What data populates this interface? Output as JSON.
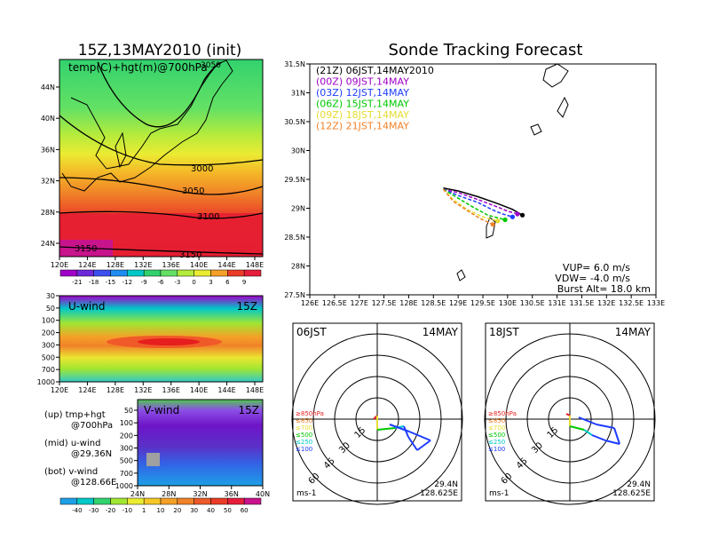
{
  "left_title": "15Z,13MAY2010 (init)",
  "right_title": "Sonde Tracking Forecast",
  "map700": {
    "title": "temp(C)+hgt(m)@700hPa",
    "y_ticks": [
      "44N",
      "40N",
      "36N",
      "32N",
      "28N",
      "24N"
    ],
    "x_ticks": [
      "120E",
      "124E",
      "128E",
      "132E",
      "136E",
      "140E",
      "144E",
      "148E"
    ],
    "contours": [
      "3000",
      "3050",
      "3100",
      "3150",
      "3150",
      "3050"
    ],
    "colorbar": [
      "-21",
      "-18",
      "-15",
      "-12",
      "-9",
      "-6",
      "-3",
      "0",
      "3",
      "6",
      "9"
    ]
  },
  "uwind": {
    "title": "U-wind",
    "time": "15Z",
    "y_ticks": [
      "30",
      "50",
      "100",
      "200",
      "300",
      "500",
      "700",
      "1000"
    ],
    "x_ticks": [
      "120E",
      "124E",
      "128E",
      "132E",
      "136E",
      "140E",
      "144E",
      "148E"
    ]
  },
  "vwind": {
    "title": "V-wind",
    "time": "15Z",
    "y_ticks": [
      "50",
      "100",
      "200",
      "300",
      "500",
      "700",
      "1000"
    ],
    "x_ticks": [
      "24N",
      "28N",
      "32N",
      "36N",
      "40N"
    ],
    "colorbar": [
      "-40",
      "-30",
      "-20",
      "-10",
      "1",
      "10",
      "20",
      "30",
      "40",
      "50",
      "60"
    ]
  },
  "legend_notes": [
    {
      "line1": "(up) tmp+hgt",
      "line2": "@700hPa"
    },
    {
      "line1": "(mid) u-wind",
      "line2": "@29.36N"
    },
    {
      "line1": "(bot) v-wind",
      "line2": "@128.66E"
    }
  ],
  "track_map": {
    "y_ticks": [
      "31.5N",
      "31N",
      "30.5N",
      "30N",
      "29.5N",
      "29N",
      "28.5N",
      "28N",
      "27.5N"
    ],
    "x_ticks": [
      "126E",
      "126.5E",
      "127E",
      "127.5E",
      "128E",
      "128.5E",
      "129E",
      "129.5E",
      "130E",
      "130.5E",
      "131E",
      "131.5E",
      "132E",
      "132.5E",
      "133E"
    ],
    "legend": [
      {
        "label": "(21Z)  06JST,14MAY2010",
        "color": "#000000"
      },
      {
        "label": "(00Z)  09JST,14MAY",
        "color": "#a000c8"
      },
      {
        "label": "(03Z)  12JST,14MAY",
        "color": "#1e3cff"
      },
      {
        "label": "(06Z)  15JST,14MAY",
        "color": "#00c800"
      },
      {
        "label": "(09Z)  18JST,14MAY",
        "color": "#e6dc32"
      },
      {
        "label": "(12Z)  21JST,14MAY",
        "color": "#f08228"
      }
    ],
    "params": [
      "VUP= 6.0 m/s",
      "VDW= -4.0 m/s",
      "Burst Alt= 18.0 km"
    ]
  },
  "polar_left": {
    "time_label": "06JST",
    "date_label": "14MAY",
    "rings": [
      "15",
      "30",
      "45",
      "60"
    ],
    "levels": [
      "≥850hPa",
      "≤850",
      "≤700",
      "≤500",
      "≤250",
      "≤100"
    ],
    "unit": "ms-1",
    "lat": "29.4N",
    "lon": "128.625E"
  },
  "polar_right": {
    "time_label": "18JST",
    "date_label": "14MAY",
    "rings": [
      "15",
      "30",
      "45",
      "60"
    ],
    "levels": [
      "≥850hPa",
      "≤850",
      "≤700",
      "≤500",
      "≤250",
      "≤100"
    ],
    "unit": "ms-1",
    "lat": "29.4N",
    "lon": "128.625E"
  },
  "chart_data": [
    {
      "type": "line",
      "title": "Sonde Tracking Forecast",
      "xlim": [
        126,
        133
      ],
      "ylim": [
        27.5,
        31.5
      ],
      "series": [
        {
          "name": "(21Z)  06JST,14MAY2010",
          "x": [
            128.7,
            129.0,
            129.4,
            129.8,
            130.1,
            130.3
          ],
          "y": [
            29.35,
            29.3,
            29.2,
            29.08,
            28.98,
            28.88
          ]
        },
        {
          "name": "(00Z)  09JST,14MAY",
          "x": [
            128.7,
            129.0,
            129.4,
            129.8,
            130.0,
            130.2
          ],
          "y": [
            29.33,
            29.27,
            29.15,
            29.02,
            28.95,
            28.9
          ]
        },
        {
          "name": "(03Z)  12JST,14MAY",
          "x": [
            128.7,
            129.0,
            129.4,
            129.7,
            129.9,
            130.1
          ],
          "y": [
            29.33,
            29.22,
            29.1,
            28.97,
            28.9,
            28.85
          ]
        },
        {
          "name": "(06Z)  15JST,14MAY",
          "x": [
            128.7,
            128.95,
            129.3,
            129.6,
            129.95
          ],
          "y": [
            29.33,
            29.2,
            29.02,
            28.88,
            28.8
          ]
        },
        {
          "name": "(09Z)  18JST,14MAY",
          "x": [
            128.7,
            128.9,
            129.2,
            129.5,
            129.8
          ],
          "y": [
            29.33,
            29.15,
            28.97,
            28.85,
            28.78
          ]
        },
        {
          "name": "(12Z)  21JST,14MAY",
          "x": [
            128.7,
            128.9,
            129.2,
            129.45,
            129.7
          ],
          "y": [
            29.33,
            29.12,
            28.95,
            28.82,
            28.72
          ]
        }
      ]
    }
  ]
}
